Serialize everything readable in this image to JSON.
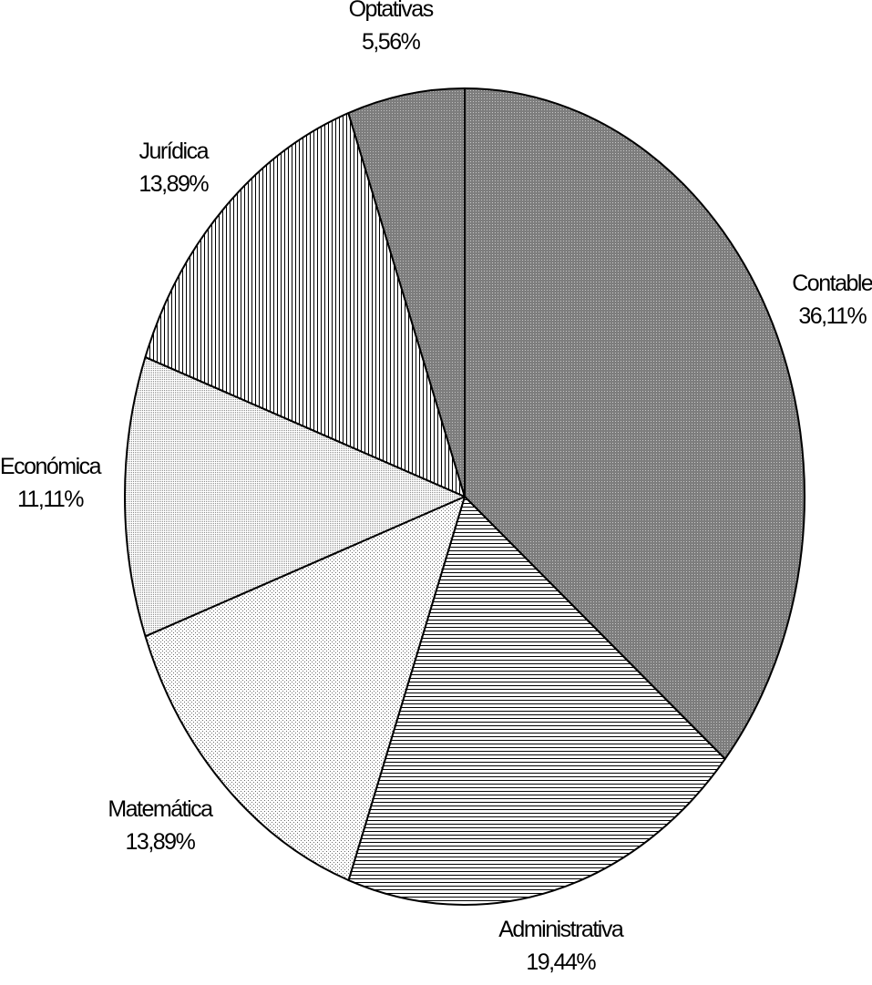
{
  "chart_data": {
    "type": "pie",
    "start_angle_deg": 0,
    "direction": "clockwise",
    "slices": [
      {
        "name": "Contable",
        "value": 36.11,
        "value_label": "36,11%",
        "pattern": "dense-dark",
        "color": "#8c8c8c"
      },
      {
        "name": "Administrativa",
        "value": 19.44,
        "value_label": "19,44%",
        "pattern": "horizontal-lines",
        "color": "#ffffff"
      },
      {
        "name": "Matemática",
        "value": 13.89,
        "value_label": "13,89%",
        "pattern": "fine-dots",
        "color": "#ececec"
      },
      {
        "name": "Económica",
        "value": 11.11,
        "value_label": "11,11%",
        "pattern": "medium-dots",
        "color": "#d6d6d6"
      },
      {
        "name": "Jurídica",
        "value": 13.89,
        "value_label": "13,89%",
        "pattern": "vertical-lines",
        "color": "#ffffff"
      },
      {
        "name": "Optativas",
        "value": 5.56,
        "value_label": "5,56%",
        "pattern": "dark",
        "color": "#8c8c8c"
      }
    ]
  }
}
